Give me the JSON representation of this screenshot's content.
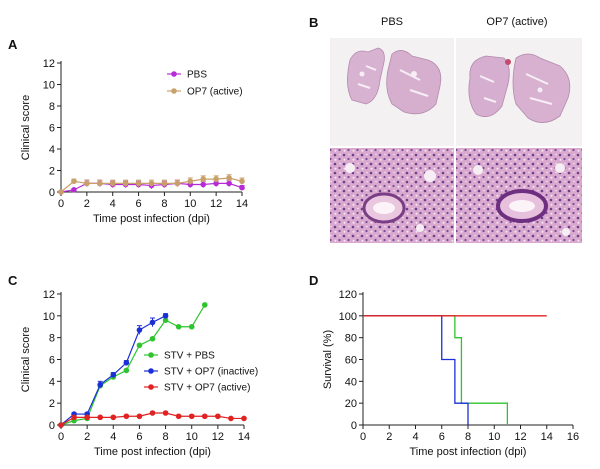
{
  "panel_letters": [
    "A",
    "B",
    "C",
    "D"
  ],
  "histology": {
    "col_labels": [
      "PBS",
      "OP7 (active)"
    ]
  },
  "chart_data": [
    {
      "panel": "A",
      "type": "line",
      "xlabel": "Time post infection (dpi)",
      "ylabel": "Clinical score",
      "xlim": [
        0,
        14
      ],
      "ylim": [
        0,
        12
      ],
      "xticks": [
        0,
        2,
        4,
        6,
        8,
        10,
        12,
        14
      ],
      "yticks": [
        0,
        2,
        4,
        6,
        8,
        10,
        12
      ],
      "grid": false,
      "legend": "top-center",
      "series": [
        {
          "name": "PBS",
          "color": "#b72bd6",
          "x": [
            0,
            1,
            2,
            3,
            4,
            5,
            6,
            7,
            8,
            9,
            10,
            11,
            12,
            13,
            14
          ],
          "y": [
            0,
            0.2,
            0.8,
            0.8,
            0.7,
            0.7,
            0.7,
            0.6,
            0.7,
            0.8,
            0.7,
            0.7,
            0.8,
            0.8,
            0.4
          ],
          "err": [
            0,
            0.1,
            0.3,
            0.3,
            0.3,
            0.3,
            0.3,
            0.3,
            0.3,
            0.3,
            0.3,
            0.3,
            0.3,
            0.3,
            0.2
          ]
        },
        {
          "name": "OP7 (active)",
          "color": "#c8a06a",
          "x": [
            0,
            1,
            2,
            3,
            4,
            5,
            6,
            7,
            8,
            9,
            10,
            11,
            12,
            13,
            14
          ],
          "y": [
            0,
            1.0,
            0.8,
            0.8,
            0.8,
            0.8,
            0.8,
            0.8,
            0.8,
            0.8,
            1.0,
            1.2,
            1.2,
            1.3,
            1.0
          ],
          "err": [
            0,
            0.2,
            0.3,
            0.3,
            0.3,
            0.3,
            0.3,
            0.3,
            0.3,
            0.3,
            0.3,
            0.3,
            0.3,
            0.3,
            0.3
          ]
        }
      ]
    },
    {
      "panel": "C",
      "type": "line",
      "xlabel": "Time post infection (dpi)",
      "ylabel": "Clinical score",
      "xlim": [
        0,
        14
      ],
      "ylim": [
        0,
        12
      ],
      "xticks": [
        0,
        2,
        4,
        6,
        8,
        10,
        12,
        14
      ],
      "yticks": [
        0,
        2,
        4,
        6,
        8,
        10,
        12
      ],
      "grid": false,
      "legend": "center-right",
      "series": [
        {
          "name": "STV + PBS",
          "color": "#2fc42f",
          "x": [
            0,
            1,
            2,
            3,
            4,
            5,
            6,
            7,
            8,
            9,
            10,
            11
          ],
          "y": [
            0,
            0.4,
            0.6,
            3.6,
            4.4,
            5.0,
            7.3,
            7.9,
            9.6,
            9.0,
            9.0,
            11.0
          ],
          "err": [
            0,
            0,
            0,
            0,
            0,
            0,
            0,
            0,
            0,
            0,
            0,
            0
          ]
        },
        {
          "name": "STV + OP7 (inactive)",
          "color": "#1b2fd6",
          "x": [
            0,
            1,
            2,
            3,
            4,
            5,
            6,
            7,
            8
          ],
          "y": [
            0,
            1.0,
            1.0,
            3.7,
            4.6,
            5.7,
            8.7,
            9.4,
            10.0
          ],
          "err": [
            0,
            0.1,
            0.1,
            0.3,
            0.2,
            0.2,
            0.4,
            0.4,
            0.2
          ]
        },
        {
          "name": "STV + OP7 (active)",
          "color": "#e02222",
          "x": [
            0,
            1,
            2,
            3,
            4,
            5,
            6,
            7,
            8,
            9,
            10,
            11,
            12,
            13,
            14
          ],
          "y": [
            0,
            0.7,
            0.7,
            0.7,
            0.7,
            0.8,
            0.8,
            1.1,
            1.1,
            0.8,
            0.8,
            0.8,
            0.8,
            0.6,
            0.6
          ],
          "err": [
            0,
            0.1,
            0.1,
            0.1,
            0.1,
            0.1,
            0.1,
            0.1,
            0.1,
            0.1,
            0.1,
            0.1,
            0.1,
            0.1,
            0.1
          ]
        }
      ]
    },
    {
      "panel": "D",
      "type": "line",
      "step": true,
      "xlabel": "Time post infection (dpi)",
      "ylabel": "Survival (%)",
      "xlim": [
        0,
        16
      ],
      "ylim": [
        0,
        120
      ],
      "xticks": [
        0,
        2,
        4,
        6,
        8,
        10,
        12,
        14,
        16
      ],
      "yticks": [
        0,
        20,
        40,
        60,
        80,
        100,
        120
      ],
      "grid": false,
      "legend": "none",
      "series": [
        {
          "color": "#2fc42f",
          "x": [
            0,
            7,
            7.5,
            11
          ],
          "y": [
            100,
            80,
            20,
            0
          ]
        },
        {
          "color": "#1b2fd6",
          "x": [
            0,
            6,
            7,
            8
          ],
          "y": [
            100,
            60,
            20,
            0
          ]
        },
        {
          "color": "#e02222",
          "x": [
            0,
            14
          ],
          "y": [
            100,
            100
          ]
        }
      ]
    }
  ]
}
